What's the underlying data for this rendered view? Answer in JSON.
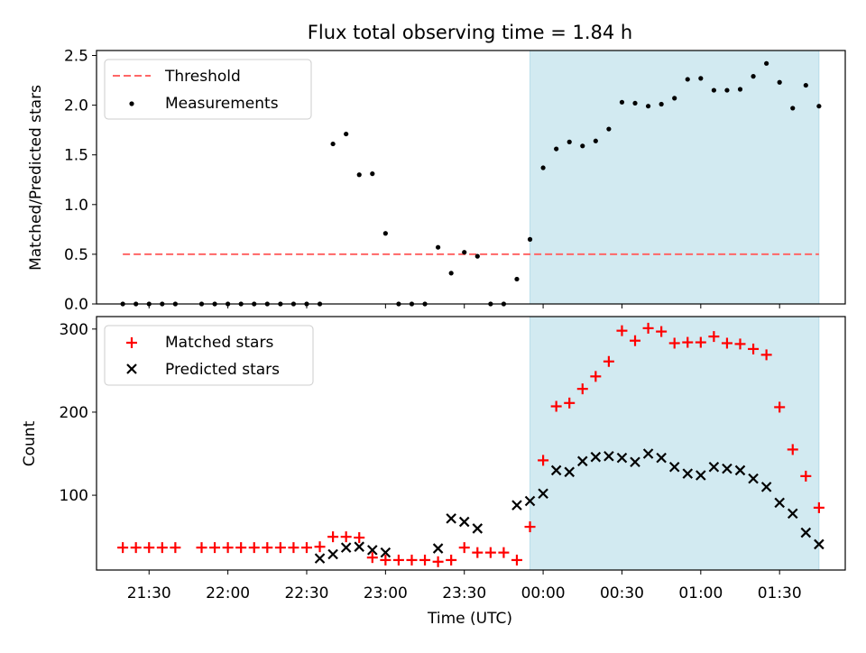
{
  "chart_data": [
    {
      "type": "scatter",
      "title": "Flux total observing time = 1.84 h",
      "xlabel": "",
      "ylabel": "Matched/Predicted stars",
      "ylim": [
        0,
        2.55
      ],
      "yticks": [
        "0.0",
        "0.5",
        "1.0",
        "1.5",
        "2.0",
        "2.5"
      ],
      "ytick_values": [
        0,
        0.5,
        1.0,
        1.5,
        2.0,
        2.5
      ],
      "legend": [
        "Threshold",
        "Measurements"
      ],
      "legend_position": "top-left",
      "shaded_interval": [
        "23:55",
        "01:45"
      ],
      "shade_color": "#add8e6",
      "threshold": {
        "name": "Threshold",
        "value": 0.5,
        "x_start": "21:20",
        "x_end": "01:45",
        "color": "#ff6666"
      },
      "series": [
        {
          "name": "Measurements",
          "color": "#000000",
          "x": [
            "21:20",
            "21:25",
            "21:30",
            "21:35",
            "21:40",
            "21:50",
            "21:55",
            "22:00",
            "22:05",
            "22:10",
            "22:15",
            "22:20",
            "22:25",
            "22:30",
            "22:35",
            "22:40",
            "22:45",
            "22:50",
            "22:55",
            "23:00",
            "23:05",
            "23:10",
            "23:15",
            "23:20",
            "23:25",
            "23:30",
            "23:35",
            "23:40",
            "23:45",
            "23:50",
            "23:55",
            "00:00",
            "00:05",
            "00:10",
            "00:15",
            "00:20",
            "00:25",
            "00:30",
            "00:35",
            "00:40",
            "00:45",
            "00:50",
            "00:55",
            "01:00",
            "01:05",
            "01:10",
            "01:15",
            "01:20",
            "01:25",
            "01:30",
            "01:35",
            "01:40",
            "01:45"
          ],
          "values": [
            0,
            0,
            0,
            0,
            0,
            0,
            0,
            0,
            0,
            0,
            0,
            0,
            0,
            0,
            0,
            1.61,
            1.71,
            1.3,
            1.31,
            0.71,
            0,
            0,
            0,
            0.57,
            0.31,
            0.52,
            0.48,
            0,
            0,
            0.25,
            0.65,
            1.37,
            1.56,
            1.63,
            1.59,
            1.64,
            1.76,
            2.03,
            2.02,
            1.99,
            2.01,
            2.07,
            2.26,
            2.27,
            2.15,
            2.15,
            2.16,
            2.29,
            2.42,
            2.23,
            1.97,
            2.2,
            1.99
          ]
        }
      ]
    },
    {
      "type": "scatter",
      "title": "",
      "xlabel": "Time (UTC)",
      "ylabel": "Count",
      "ylim": [
        10,
        315
      ],
      "yticks": [
        "100",
        "200",
        "300"
      ],
      "ytick_values": [
        100,
        200,
        300
      ],
      "xlim": [
        "21:10",
        "01:55"
      ],
      "xticks": [
        "21:30",
        "22:00",
        "22:30",
        "23:00",
        "23:30",
        "00:00",
        "00:30",
        "01:00",
        "01:30"
      ],
      "legend": [
        "Matched stars",
        "Predicted stars"
      ],
      "legend_position": "top-left",
      "shaded_interval": [
        "23:55",
        "01:45"
      ],
      "series": [
        {
          "name": "Matched stars",
          "marker": "+",
          "color": "#ff0000",
          "x": [
            "21:20",
            "21:25",
            "21:30",
            "21:35",
            "21:40",
            "21:50",
            "21:55",
            "22:00",
            "22:05",
            "22:10",
            "22:15",
            "22:20",
            "22:25",
            "22:30",
            "22:35",
            "22:40",
            "22:45",
            "22:50",
            "22:55",
            "23:00",
            "23:05",
            "23:10",
            "23:15",
            "23:20",
            "23:25",
            "23:30",
            "23:35",
            "23:40",
            "23:45",
            "23:50",
            "23:55",
            "00:00",
            "00:05",
            "00:10",
            "00:15",
            "00:20",
            "00:25",
            "00:30",
            "00:35",
            "00:40",
            "00:45",
            "00:50",
            "00:55",
            "01:00",
            "01:05",
            "01:10",
            "01:15",
            "01:20",
            "01:25",
            "01:30",
            "01:35",
            "01:40",
            "01:45"
          ],
          "values": [
            37,
            37,
            37,
            37,
            37,
            37,
            37,
            37,
            37,
            37,
            37,
            37,
            37,
            37,
            38,
            50,
            50,
            49,
            25,
            22,
            22,
            22,
            22,
            20,
            22,
            37,
            31,
            31,
            31,
            22,
            62,
            142,
            207,
            211,
            228,
            243,
            261,
            298,
            286,
            301,
            297,
            283,
            284,
            284,
            291,
            283,
            282,
            276,
            269,
            206,
            155,
            123,
            85
          ]
        },
        {
          "name": "Predicted stars",
          "marker": "x",
          "color": "#000000",
          "x": [
            "22:35",
            "22:40",
            "22:45",
            "22:50",
            "22:55",
            "23:00",
            "23:20",
            "23:25",
            "23:30",
            "23:35",
            "23:50",
            "23:55",
            "00:00",
            "00:05",
            "00:10",
            "00:15",
            "00:20",
            "00:25",
            "00:30",
            "00:35",
            "00:40",
            "00:45",
            "00:50",
            "00:55",
            "01:00",
            "01:05",
            "01:10",
            "01:15",
            "01:20",
            "01:25",
            "01:30",
            "01:35",
            "01:40",
            "01:45"
          ],
          "values": [
            24,
            29,
            37,
            38,
            34,
            31,
            36,
            72,
            68,
            60,
            88,
            93,
            102,
            130,
            128,
            141,
            146,
            147,
            145,
            140,
            150,
            145,
            134,
            126,
            124,
            134,
            132,
            130,
            120,
            110,
            91,
            78,
            55,
            41
          ]
        }
      ]
    }
  ]
}
